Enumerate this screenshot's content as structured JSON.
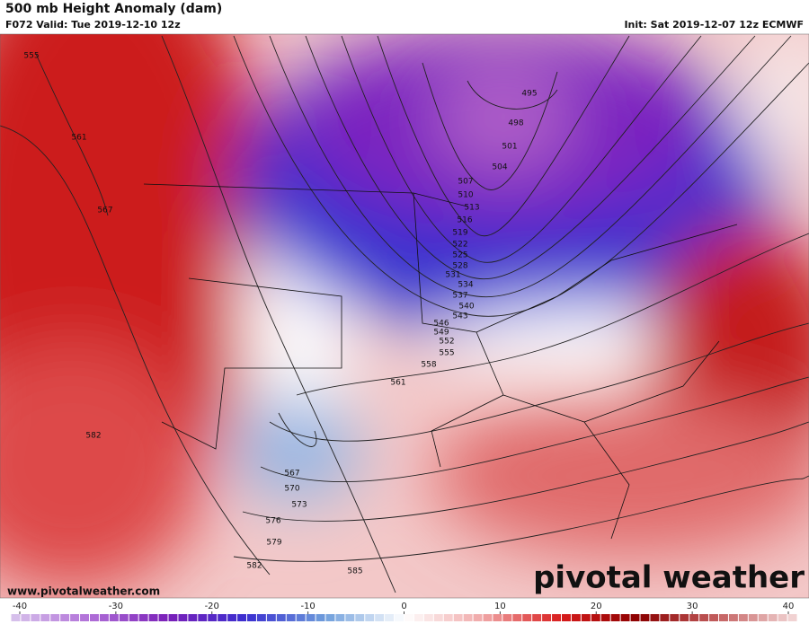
{
  "header": {
    "title": "500 mb Height Anomaly (dam)",
    "valid": "F072 Valid: Tue 2019-12-10 12z",
    "init": "Init: Sat 2019-12-07 12z ECMWF"
  },
  "contour_labels": [
    555,
    561,
    567,
    582,
    495,
    498,
    501,
    504,
    507,
    510,
    513,
    516,
    519,
    522,
    525,
    528,
    531,
    534,
    537,
    540,
    543,
    546,
    549,
    552,
    555,
    558,
    561,
    567,
    570,
    573,
    576,
    579,
    582,
    585
  ],
  "colorbar": {
    "range": [
      -40,
      40
    ],
    "ticks": [
      -40,
      -30,
      -20,
      -10,
      0,
      10,
      20,
      30,
      40
    ],
    "colors": [
      "#d8c4ec",
      "#b070d8",
      "#7a1fb8",
      "#3a2fd0",
      "#6f9fdc",
      "#ffffff",
      "#f0a8a8",
      "#d81c1c",
      "#8a0000",
      "#c46060",
      "#f4dada"
    ]
  },
  "footer": {
    "url": "www.pivotalweather.com",
    "brand": "pivotal weather"
  }
}
